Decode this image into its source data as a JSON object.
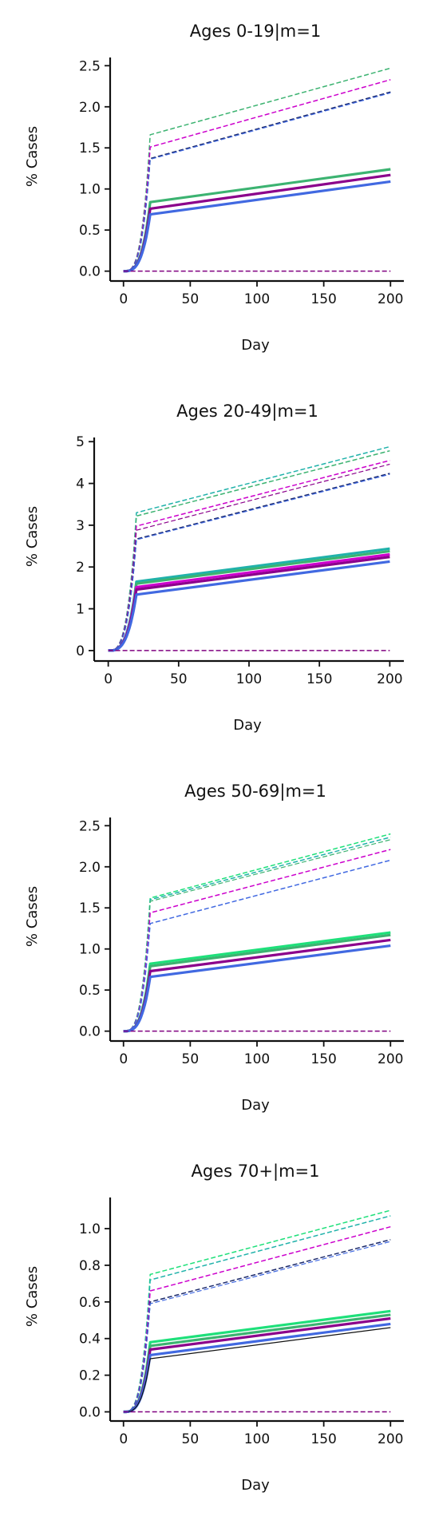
{
  "colors": {
    "green": "#3cb371",
    "springgreen": "#1ee07a",
    "teal": "#20b2aa",
    "magenta": "#cc00cc",
    "purple": "#8b008b",
    "royalblue": "#4169e1",
    "navy": "#1c2a6b",
    "black": "#111111",
    "baseline": "#800080"
  },
  "chart_data": [
    {
      "type": "line",
      "title": "Ages 0-19|m=1",
      "xlabel": "Day",
      "ylabel": "% Cases",
      "xlim": [
        -10,
        210
      ],
      "ylim": [
        -0.12,
        2.6
      ],
      "xticks": [
        0,
        50,
        100,
        150,
        200
      ],
      "yticks": [
        0.0,
        0.5,
        1.0,
        1.5,
        2.0,
        2.5
      ],
      "ytick_labels": [
        "0.0",
        "0.5",
        "1.0",
        "1.5",
        "2.0",
        "2.5"
      ],
      "xtick_labels": [
        "0",
        "50",
        "100",
        "150",
        "200"
      ],
      "x": [
        0,
        10,
        20,
        200
      ],
      "series": [
        {
          "values": [
            0,
            0,
            0.84,
            1.24
          ],
          "color": "green",
          "style": "solid",
          "width": 3.2
        },
        {
          "values": [
            0,
            0,
            0.76,
            1.17
          ],
          "color": "purple",
          "style": "solid",
          "width": 3.2
        },
        {
          "values": [
            0,
            0,
            0.69,
            1.09
          ],
          "color": "royalblue",
          "style": "solid",
          "width": 3.2
        },
        {
          "values": [
            0,
            0,
            1.66,
            2.47
          ],
          "color": "green",
          "style": "dashed",
          "width": 1.5
        },
        {
          "values": [
            0,
            0,
            1.51,
            2.33
          ],
          "color": "magenta",
          "style": "dashed",
          "width": 1.5
        },
        {
          "values": [
            0,
            0,
            1.37,
            2.18
          ],
          "color": "navy",
          "style": "dashed",
          "width": 1.5
        },
        {
          "values": [
            0,
            0,
            1.36,
            2.17
          ],
          "color": "royalblue",
          "style": "dashed",
          "width": 1.2
        },
        {
          "values": [
            0,
            0,
            0,
            0
          ],
          "color": "baseline",
          "style": "dashed",
          "width": 1.5
        }
      ]
    },
    {
      "type": "line",
      "title": "Ages 20-49|m=1",
      "xlabel": "Day",
      "ylabel": "% Cases",
      "xlim": [
        -10,
        210
      ],
      "ylim": [
        -0.25,
        5.1
      ],
      "xticks": [
        0,
        50,
        100,
        150,
        200
      ],
      "yticks": [
        0,
        1,
        2,
        3,
        4,
        5
      ],
      "ytick_labels": [
        "0",
        "1",
        "2",
        "3",
        "4",
        "5"
      ],
      "xtick_labels": [
        "0",
        "50",
        "100",
        "150",
        "200"
      ],
      "x": [
        0,
        10,
        20,
        200
      ],
      "series": [
        {
          "values": [
            0,
            0,
            1.65,
            2.44
          ],
          "color": "teal",
          "style": "solid",
          "width": 3.2
        },
        {
          "values": [
            0,
            0,
            1.6,
            2.38
          ],
          "color": "green",
          "style": "solid",
          "width": 3.2
        },
        {
          "values": [
            0,
            0,
            1.52,
            2.3
          ],
          "color": "magenta",
          "style": "solid",
          "width": 3.2
        },
        {
          "values": [
            0,
            0,
            1.46,
            2.24
          ],
          "color": "purple",
          "style": "solid",
          "width": 3.2
        },
        {
          "values": [
            0,
            0,
            1.34,
            2.13
          ],
          "color": "royalblue",
          "style": "solid",
          "width": 3.2
        },
        {
          "values": [
            0,
            0,
            3.3,
            4.88
          ],
          "color": "teal",
          "style": "dashed",
          "width": 1.5
        },
        {
          "values": [
            0,
            0,
            3.22,
            4.78
          ],
          "color": "green",
          "style": "dashed",
          "width": 1.5
        },
        {
          "values": [
            0,
            0,
            2.98,
            4.55
          ],
          "color": "magenta",
          "style": "dashed",
          "width": 1.5
        },
        {
          "values": [
            0,
            0,
            2.88,
            4.46
          ],
          "color": "purple",
          "style": "dashed",
          "width": 1.2
        },
        {
          "values": [
            0,
            0,
            2.67,
            4.24
          ],
          "color": "navy",
          "style": "dashed",
          "width": 1.5
        },
        {
          "values": [
            0,
            0,
            2.65,
            4.22
          ],
          "color": "royalblue",
          "style": "dashed",
          "width": 1.2
        },
        {
          "values": [
            0,
            0,
            0,
            0
          ],
          "color": "baseline",
          "style": "dashed",
          "width": 1.5
        }
      ]
    },
    {
      "type": "line",
      "title": "Ages 50-69|m=1",
      "xlabel": "Day",
      "ylabel": "% Cases",
      "xlim": [
        -10,
        210
      ],
      "ylim": [
        -0.12,
        2.6
      ],
      "xticks": [
        0,
        50,
        100,
        150,
        200
      ],
      "yticks": [
        0.0,
        0.5,
        1.0,
        1.5,
        2.0,
        2.5
      ],
      "ytick_labels": [
        "0.0",
        "0.5",
        "1.0",
        "1.5",
        "2.0",
        "2.5"
      ],
      "xtick_labels": [
        "0",
        "50",
        "100",
        "150",
        "200"
      ],
      "x": [
        0,
        10,
        20,
        200
      ],
      "series": [
        {
          "values": [
            0,
            0,
            0.82,
            1.2
          ],
          "color": "springgreen",
          "style": "solid",
          "width": 3.2
        },
        {
          "values": [
            0,
            0,
            0.79,
            1.17
          ],
          "color": "green",
          "style": "solid",
          "width": 3.2
        },
        {
          "values": [
            0,
            0,
            0.73,
            1.11
          ],
          "color": "purple",
          "style": "solid",
          "width": 3.2
        },
        {
          "values": [
            0,
            0,
            0.66,
            1.04
          ],
          "color": "royalblue",
          "style": "solid",
          "width": 3.2
        },
        {
          "values": [
            0,
            0,
            1.62,
            2.4
          ],
          "color": "springgreen",
          "style": "dashed",
          "width": 1.5
        },
        {
          "values": [
            0,
            0,
            1.6,
            2.36
          ],
          "color": "teal",
          "style": "dashed",
          "width": 1.5
        },
        {
          "values": [
            0,
            0,
            1.58,
            2.33
          ],
          "color": "green",
          "style": "dashed",
          "width": 1.2
        },
        {
          "values": [
            0,
            0,
            1.44,
            2.21
          ],
          "color": "magenta",
          "style": "dashed",
          "width": 1.5
        },
        {
          "values": [
            0,
            0,
            1.31,
            2.08
          ],
          "color": "royalblue",
          "style": "dashed",
          "width": 1.5
        },
        {
          "values": [
            0,
            0,
            0,
            0
          ],
          "color": "baseline",
          "style": "dashed",
          "width": 1.5
        }
      ]
    },
    {
      "type": "line",
      "title": "Ages 70+|m=1",
      "xlabel": "Day",
      "ylabel": "% Cases",
      "xlim": [
        -10,
        210
      ],
      "ylim": [
        -0.05,
        1.17
      ],
      "xticks": [
        0,
        50,
        100,
        150,
        200
      ],
      "yticks": [
        0.0,
        0.2,
        0.4,
        0.6,
        0.8,
        1.0
      ],
      "ytick_labels": [
        "0.0",
        "0.2",
        "0.4",
        "0.6",
        "0.8",
        "1.0"
      ],
      "xtick_labels": [
        "0",
        "50",
        "100",
        "150",
        "200"
      ],
      "x": [
        0,
        10,
        20,
        200
      ],
      "series": [
        {
          "values": [
            0,
            0,
            0.38,
            0.55
          ],
          "color": "springgreen",
          "style": "solid",
          "width": 3.2
        },
        {
          "values": [
            0,
            0,
            0.36,
            0.53
          ],
          "color": "green",
          "style": "solid",
          "width": 3.2
        },
        {
          "values": [
            0,
            0,
            0.34,
            0.51
          ],
          "color": "purple",
          "style": "solid",
          "width": 3.2
        },
        {
          "values": [
            0,
            0,
            0.31,
            0.48
          ],
          "color": "royalblue",
          "style": "solid",
          "width": 3.2
        },
        {
          "values": [
            0,
            0,
            0.29,
            0.46
          ],
          "color": "black",
          "style": "solid",
          "width": 1.2
        },
        {
          "values": [
            0,
            0,
            0.75,
            1.1
          ],
          "color": "springgreen",
          "style": "dashed",
          "width": 1.5
        },
        {
          "values": [
            0,
            0,
            0.72,
            1.07
          ],
          "color": "teal",
          "style": "dashed",
          "width": 1.5
        },
        {
          "values": [
            0,
            0,
            0.66,
            1.01
          ],
          "color": "magenta",
          "style": "dashed",
          "width": 1.5
        },
        {
          "values": [
            0,
            0,
            0.6,
            0.94
          ],
          "color": "navy",
          "style": "dashed",
          "width": 1.5
        },
        {
          "values": [
            0,
            0,
            0.59,
            0.93
          ],
          "color": "royalblue",
          "style": "dashed",
          "width": 1.2
        },
        {
          "values": [
            0,
            0,
            0,
            0
          ],
          "color": "baseline",
          "style": "dashed",
          "width": 1.5
        }
      ]
    }
  ]
}
